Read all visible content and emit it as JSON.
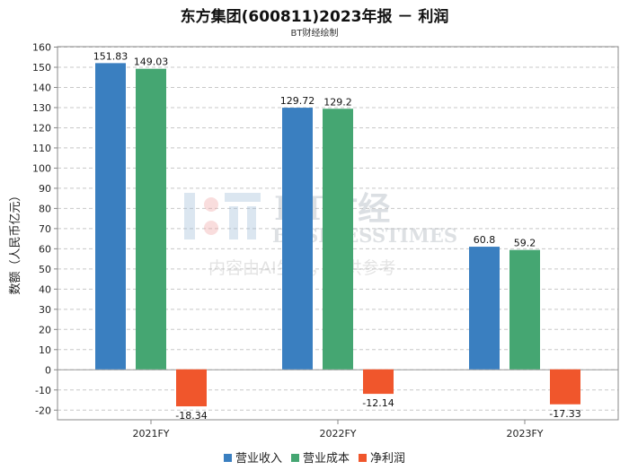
{
  "page": {
    "title": "东方集团(600811)2023年报 － 利润",
    "subtitle": "BT财经绘制",
    "watermark": {
      "brand": "BT财经",
      "brand_en": "BUSINESSTIMES",
      "note": "内容由AI生成，仅供参考"
    }
  },
  "colors": {
    "营业收入": "#3a7fc0",
    "营业成本": "#45a672",
    "净利润": "#f0562c",
    "grid": "#c8c8c8",
    "axis": "#888888"
  },
  "chart_data": {
    "type": "bar",
    "title": "东方集团(600811)2023年报 － 利润",
    "subtitle": "BT财经绘制",
    "xlabel": "",
    "ylabel": "数额（人民币亿元）",
    "categories": [
      "2021FY",
      "2022FY",
      "2023FY"
    ],
    "series": [
      {
        "name": "营业收入",
        "values": [
          151.83,
          129.72,
          60.8
        ]
      },
      {
        "name": "营业成本",
        "values": [
          149.03,
          129.2,
          59.2
        ]
      },
      {
        "name": "净利润",
        "values": [
          -18.34,
          -12.14,
          -17.33
        ]
      }
    ],
    "ylim": [
      -25,
      160
    ],
    "yticks": [
      -20,
      -10,
      0,
      10,
      20,
      30,
      40,
      50,
      60,
      70,
      80,
      90,
      100,
      110,
      120,
      130,
      140,
      150,
      160
    ],
    "grid": true,
    "legend_position": "bottom"
  }
}
